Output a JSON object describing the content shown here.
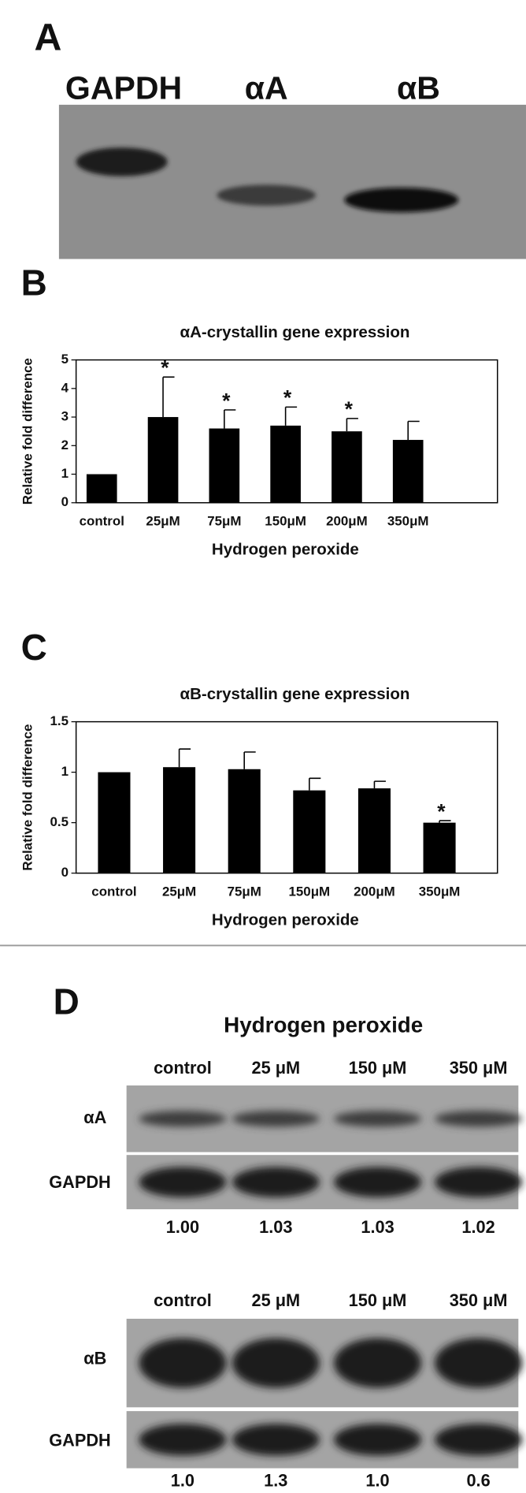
{
  "panel_a": {
    "label": "A",
    "lanes": [
      "GAPDH",
      "αA",
      "αB"
    ]
  },
  "chart_data": [
    {
      "type": "bar",
      "label": "B",
      "title": "αA-crystallin gene expression",
      "y_label": "Relative fold difference",
      "x_label": "Hydrogen peroxide",
      "categories": [
        "control",
        "25μM",
        "75μM",
        "150μM",
        "200μM",
        "350μM"
      ],
      "values": [
        1.0,
        3.0,
        2.6,
        2.7,
        2.5,
        2.2
      ],
      "errors": [
        0,
        1.4,
        0.65,
        0.65,
        0.45,
        0.65
      ],
      "significance": [
        null,
        "*",
        "*",
        "*",
        "*",
        null
      ],
      "color": "#000000",
      "ylim": [
        0,
        5
      ],
      "yticks": [
        0,
        1,
        2,
        3,
        4,
        5
      ]
    },
    {
      "type": "bar",
      "label": "C",
      "title": "αB-crystallin gene expression",
      "y_label": "Relative fold difference",
      "x_label": "Hydrogen peroxide",
      "categories": [
        "control",
        "25μM",
        "75μM",
        "150μM",
        "200μM",
        "350μM"
      ],
      "values": [
        1.0,
        1.05,
        1.03,
        0.82,
        0.84,
        0.5
      ],
      "errors": [
        0,
        0.18,
        0.17,
        0.12,
        0.07,
        0.02
      ],
      "significance": [
        null,
        null,
        null,
        null,
        null,
        "*"
      ],
      "color": "#000000",
      "ylim": [
        0,
        1.5
      ],
      "yticks": [
        0,
        0.5,
        1,
        1.5
      ]
    }
  ],
  "panel_d": {
    "label": "D",
    "title": "Hydrogen peroxide",
    "blocks": [
      {
        "lanes": [
          "control",
          "25 μM",
          "150 μM",
          "350 μM"
        ],
        "rows": [
          "αA",
          "GAPDH"
        ],
        "ratios": [
          "1.00",
          "1.03",
          "1.03",
          "1.02"
        ]
      },
      {
        "lanes": [
          "control",
          "25 μM",
          "150 μM",
          "350 μM"
        ],
        "rows": [
          "αB",
          "GAPDH"
        ],
        "ratios": [
          "1.0",
          "1.3",
          "1.0",
          "0.6"
        ]
      }
    ]
  }
}
